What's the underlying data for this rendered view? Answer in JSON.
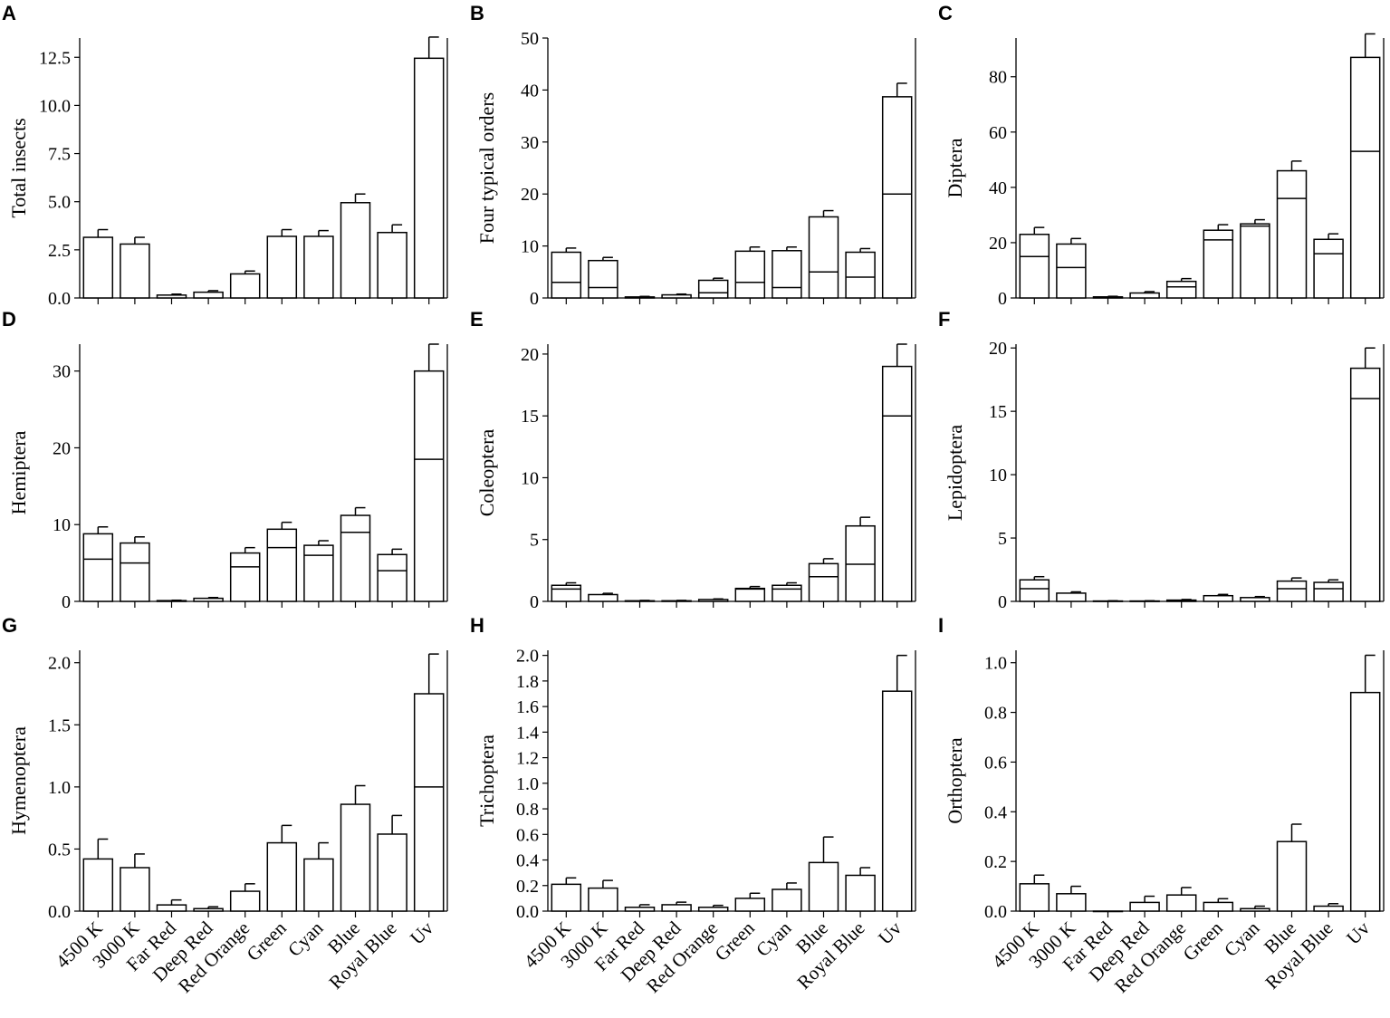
{
  "figure": {
    "categories": [
      "4500 K",
      "3000 K",
      "Far Red",
      "Deep Red",
      "Red Orange",
      "Green",
      "Cyan",
      "Blue",
      "Royal Blue",
      "Uv"
    ]
  },
  "chart_data": [
    {
      "letter": "A",
      "type": "bar",
      "ylabel": "Total insects",
      "categories": [
        "4500 K",
        "3000 K",
        "Far Red",
        "Deep Red",
        "Red Orange",
        "Green",
        "Cyan",
        "Blue",
        "Royal Blue",
        "Uv"
      ],
      "values": [
        3.15,
        2.8,
        0.15,
        0.3,
        1.25,
        3.2,
        3.2,
        4.95,
        3.4,
        12.45
      ],
      "errors": [
        0.4,
        0.35,
        0.05,
        0.08,
        0.15,
        0.35,
        0.3,
        0.45,
        0.4,
        1.1
      ],
      "medians": [
        null,
        null,
        null,
        null,
        null,
        null,
        null,
        null,
        null,
        null
      ],
      "ylim": [
        0,
        13.5
      ],
      "yticks": [
        "0.0",
        "2.5",
        "5.0",
        "7.5",
        "10.0",
        "12.5"
      ]
    },
    {
      "letter": "B",
      "type": "bar",
      "ylabel": "Four typical orders",
      "categories": [
        "4500 K",
        "3000 K",
        "Far Red",
        "Deep Red",
        "Red Orange",
        "Green",
        "Cyan",
        "Blue",
        "Royal Blue",
        "Uv"
      ],
      "values": [
        8.8,
        7.2,
        0.2,
        0.6,
        3.4,
        9.0,
        9.1,
        15.6,
        8.8,
        38.7
      ],
      "errors": [
        0.8,
        0.6,
        0.1,
        0.15,
        0.4,
        0.8,
        0.7,
        1.2,
        0.7,
        2.6
      ],
      "medians": [
        3,
        2,
        null,
        null,
        1,
        3,
        2,
        5,
        4,
        20
      ],
      "ylim": [
        0,
        50
      ],
      "yticks": [
        "0",
        "10",
        "20",
        "30",
        "40",
        "50"
      ]
    },
    {
      "letter": "C",
      "type": "bar",
      "ylabel": "Diptera",
      "categories": [
        "4500 K",
        "3000 K",
        "Far Red",
        "Deep Red",
        "Red Orange",
        "Green",
        "Cyan",
        "Blue",
        "Royal Blue",
        "Uv"
      ],
      "values": [
        23.0,
        19.5,
        0.4,
        1.8,
        6.0,
        24.5,
        26.8,
        46.0,
        21.2,
        87.0
      ],
      "errors": [
        2.5,
        2.0,
        0.2,
        0.5,
        1.0,
        2.0,
        1.5,
        3.5,
        2.0,
        8.5
      ],
      "medians": [
        15,
        11,
        null,
        null,
        4,
        21,
        26,
        36,
        16,
        53
      ],
      "ylim": [
        0,
        94
      ],
      "yticks": [
        "0",
        "20",
        "40",
        "60",
        "80"
      ]
    },
    {
      "letter": "D",
      "type": "bar",
      "ylabel": "Hemiptera",
      "categories": [
        "4500 K",
        "3000 K",
        "Far Red",
        "Deep Red",
        "Red Orange",
        "Green",
        "Cyan",
        "Blue",
        "Royal Blue",
        "Uv"
      ],
      "values": [
        8.8,
        7.6,
        0.1,
        0.4,
        6.3,
        9.4,
        7.3,
        11.2,
        6.1,
        30.0
      ],
      "errors": [
        0.9,
        0.8,
        0.05,
        0.1,
        0.7,
        0.9,
        0.6,
        1.0,
        0.7,
        3.5
      ],
      "medians": [
        5.5,
        5,
        null,
        null,
        4.5,
        7,
        6,
        9,
        4,
        18.5
      ],
      "ylim": [
        0,
        33.5
      ],
      "yticks": [
        "0",
        "10",
        "20",
        "30"
      ]
    },
    {
      "letter": "E",
      "type": "bar",
      "ylabel": "Coleoptera",
      "categories": [
        "4500 K",
        "3000 K",
        "Far Red",
        "Deep Red",
        "Red Orange",
        "Green",
        "Cyan",
        "Blue",
        "Royal Blue",
        "Uv"
      ],
      "values": [
        1.3,
        0.55,
        0.05,
        0.05,
        0.15,
        1.05,
        1.3,
        3.05,
        6.1,
        19.0
      ],
      "errors": [
        0.2,
        0.1,
        0.03,
        0.03,
        0.05,
        0.15,
        0.2,
        0.4,
        0.7,
        1.8
      ],
      "medians": [
        1,
        null,
        null,
        null,
        null,
        1,
        1,
        2,
        3,
        15
      ],
      "ylim": [
        0,
        20.8
      ],
      "yticks": [
        "0",
        "5",
        "10",
        "15",
        "20"
      ]
    },
    {
      "letter": "F",
      "type": "bar",
      "ylabel": "Lepidoptera",
      "categories": [
        "4500 K",
        "3000 K",
        "Far Red",
        "Deep Red",
        "Red Orange",
        "Green",
        "Cyan",
        "Blue",
        "Royal Blue",
        "Uv"
      ],
      "values": [
        1.7,
        0.65,
        0.03,
        0.03,
        0.1,
        0.45,
        0.3,
        1.6,
        1.5,
        18.4
      ],
      "errors": [
        0.25,
        0.1,
        0.02,
        0.02,
        0.05,
        0.1,
        0.08,
        0.25,
        0.2,
        1.6
      ],
      "medians": [
        1,
        null,
        null,
        null,
        null,
        null,
        null,
        1,
        1,
        16
      ],
      "ylim": [
        0,
        20.3
      ],
      "yticks": [
        "0",
        "5",
        "10",
        "15",
        "20"
      ]
    },
    {
      "letter": "G",
      "type": "bar",
      "ylabel": "Hymenoptera",
      "categories": [
        "4500 K",
        "3000 K",
        "Far Red",
        "Deep Red",
        "Red Orange",
        "Green",
        "Cyan",
        "Blue",
        "Royal Blue",
        "Uv"
      ],
      "values": [
        0.42,
        0.35,
        0.05,
        0.02,
        0.16,
        0.55,
        0.42,
        0.86,
        0.62,
        1.75
      ],
      "errors": [
        0.16,
        0.11,
        0.04,
        0.015,
        0.06,
        0.14,
        0.13,
        0.15,
        0.15,
        0.32
      ],
      "medians": [
        null,
        null,
        null,
        null,
        null,
        null,
        null,
        null,
        null,
        1.0
      ],
      "ylim": [
        0,
        2.1
      ],
      "yticks": [
        "0.0",
        "0.5",
        "1.0",
        "1.5",
        "2.0"
      ]
    },
    {
      "letter": "H",
      "type": "bar",
      "ylabel": "Trichoptera",
      "categories": [
        "4500 K",
        "3000 K",
        "Far Red",
        "Deep Red",
        "Red Orange",
        "Green",
        "Cyan",
        "Blue",
        "Royal Blue",
        "Uv"
      ],
      "values": [
        0.21,
        0.18,
        0.03,
        0.05,
        0.03,
        0.1,
        0.17,
        0.38,
        0.28,
        1.72
      ],
      "errors": [
        0.05,
        0.06,
        0.02,
        0.02,
        0.015,
        0.04,
        0.05,
        0.2,
        0.06,
        0.28
      ],
      "medians": [
        null,
        null,
        null,
        null,
        null,
        null,
        null,
        null,
        null,
        null
      ],
      "ylim": [
        0,
        2.04
      ],
      "yticks": [
        "0.0",
        "0.2",
        "0.4",
        "0.6",
        "0.8",
        "1.0",
        "1.2",
        "1.4",
        "1.6",
        "1.8",
        "2.0"
      ]
    },
    {
      "letter": "I",
      "type": "bar",
      "ylabel": "Orthoptera",
      "categories": [
        "4500 K",
        "3000 K",
        "Far Red",
        "Deep Red",
        "Red Orange",
        "Green",
        "Cyan",
        "Blue",
        "Royal Blue",
        "Uv"
      ],
      "values": [
        0.11,
        0.07,
        0.0,
        0.035,
        0.065,
        0.035,
        0.01,
        0.28,
        0.02,
        0.88
      ],
      "errors": [
        0.035,
        0.03,
        0.0,
        0.025,
        0.03,
        0.015,
        0.01,
        0.07,
        0.01,
        0.15
      ],
      "medians": [
        null,
        null,
        null,
        null,
        null,
        null,
        null,
        null,
        null,
        null
      ],
      "ylim": [
        0,
        1.05
      ],
      "yticks": [
        "0.0",
        "0.2",
        "0.4",
        "0.6",
        "0.8",
        "1.0"
      ]
    }
  ]
}
